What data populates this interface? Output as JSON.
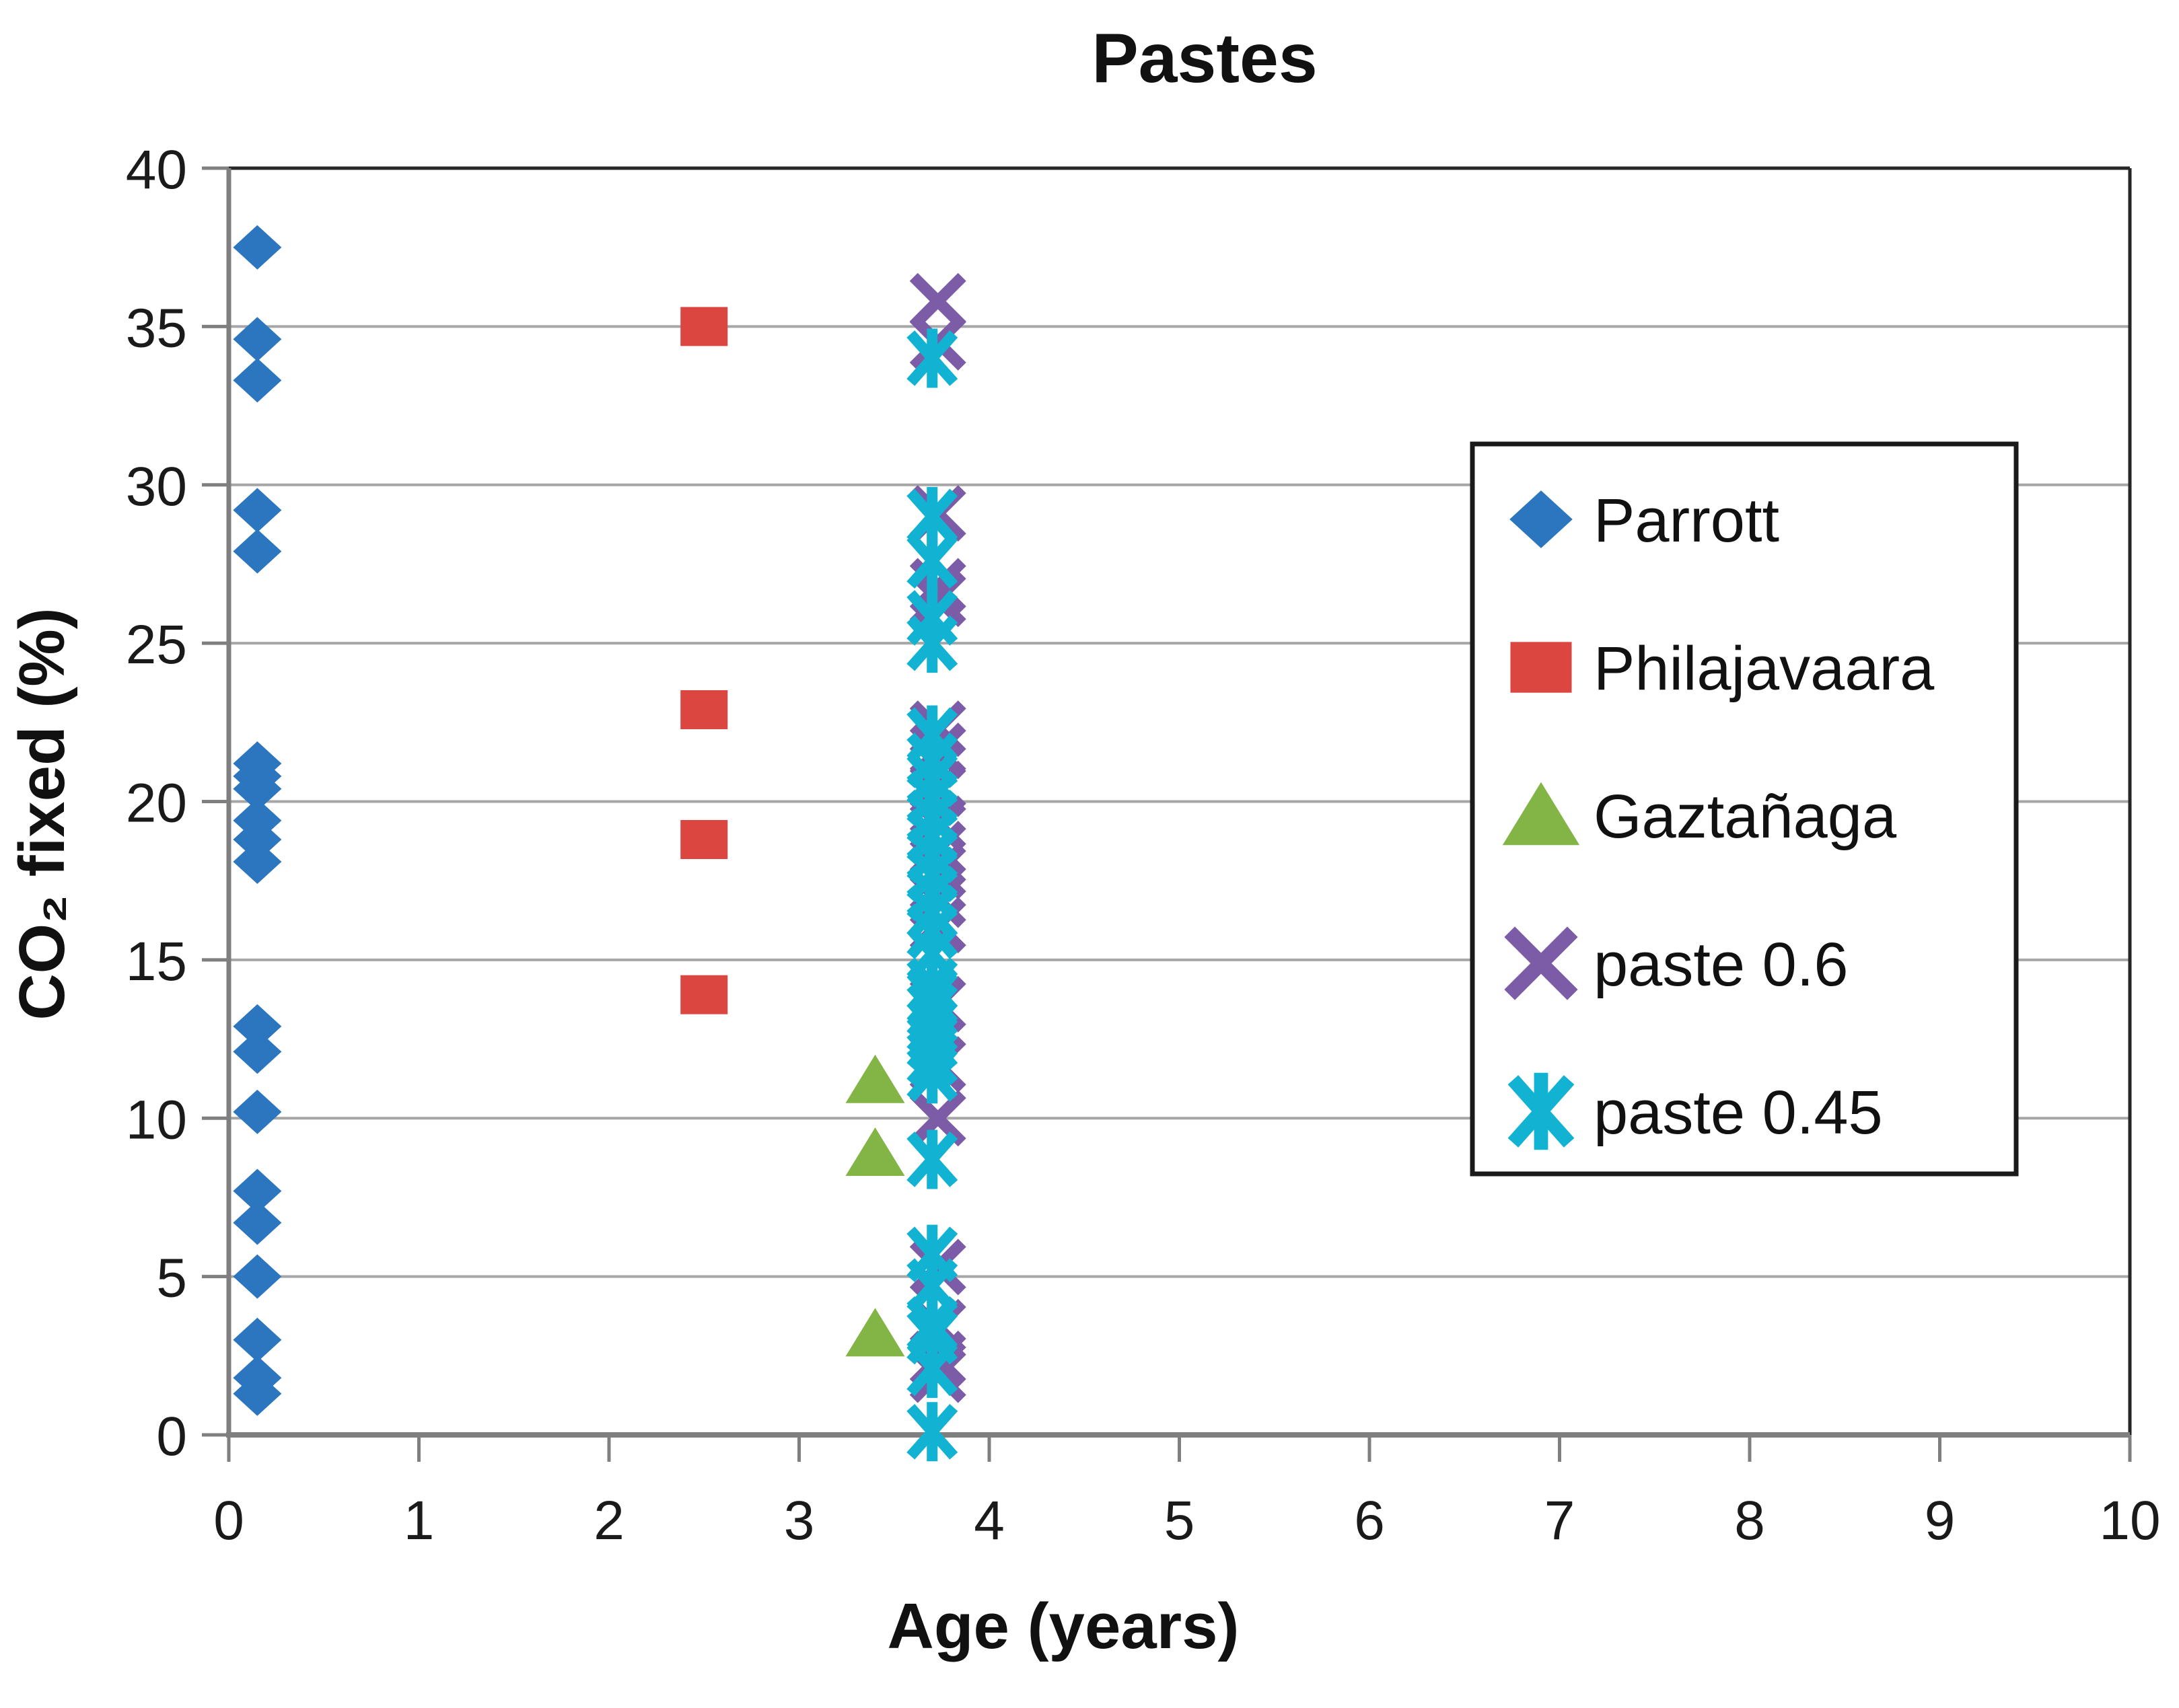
{
  "chart_data": {
    "type": "scatter",
    "title": "Pastes",
    "xlabel": "Age (years)",
    "ylabel": "CO₂ fixed (%)",
    "xlim": [
      0,
      10
    ],
    "ylim": [
      0,
      40
    ],
    "x_ticks": [
      0,
      1,
      2,
      3,
      4,
      5,
      6,
      7,
      8,
      9,
      10
    ],
    "y_ticks": [
      0,
      5,
      10,
      15,
      20,
      25,
      30,
      35,
      40
    ],
    "grid": "horizontal",
    "grid_color": "#A6A6A6",
    "axis_color": "#7F7F7F",
    "box_color": "#262626",
    "legend_position": "inside-right",
    "series": [
      {
        "name": "Parrott",
        "marker": "diamond",
        "color": "#2B76BE",
        "points": [
          [
            0.15,
            37.5
          ],
          [
            0.15,
            34.6
          ],
          [
            0.15,
            33.3
          ],
          [
            0.15,
            29.2
          ],
          [
            0.15,
            27.9
          ],
          [
            0.15,
            21.2
          ],
          [
            0.15,
            20.8
          ],
          [
            0.15,
            20.4
          ],
          [
            0.15,
            19.4
          ],
          [
            0.15,
            18.8
          ],
          [
            0.15,
            18.1
          ],
          [
            0.15,
            12.9
          ],
          [
            0.15,
            12.1
          ],
          [
            0.15,
            10.2
          ],
          [
            0.15,
            7.7
          ],
          [
            0.15,
            6.7
          ],
          [
            0.15,
            5.0
          ],
          [
            0.15,
            3.0
          ],
          [
            0.15,
            1.8
          ],
          [
            0.15,
            1.3
          ]
        ]
      },
      {
        "name": "Philajavaara",
        "marker": "square",
        "color": "#DB4640",
        "points": [
          [
            2.5,
            35.0
          ],
          [
            2.5,
            22.9
          ],
          [
            2.5,
            18.8
          ],
          [
            2.5,
            13.9
          ]
        ]
      },
      {
        "name": "Gaztañaga",
        "marker": "triangle",
        "color": "#82B446",
        "points": [
          [
            3.4,
            11.2
          ],
          [
            3.4,
            8.9
          ],
          [
            3.4,
            3.2
          ]
        ]
      },
      {
        "name": "paste 0.6",
        "marker": "x",
        "color": "#7C5CA6",
        "points": [
          [
            3.73,
            35.8
          ],
          [
            3.73,
            34.5
          ],
          [
            3.73,
            29.1
          ],
          [
            3.73,
            26.8
          ],
          [
            3.73,
            26.4
          ],
          [
            3.73,
            22.3
          ],
          [
            3.73,
            21.6
          ],
          [
            3.73,
            20.4
          ],
          [
            3.73,
            19.3
          ],
          [
            3.73,
            18.5
          ],
          [
            3.73,
            17.8
          ],
          [
            3.73,
            16.9
          ],
          [
            3.73,
            16.1
          ],
          [
            3.73,
            13.6
          ],
          [
            3.73,
            11.7
          ],
          [
            3.73,
            10.0
          ],
          [
            3.73,
            5.3
          ],
          [
            3.73,
            3.4
          ],
          [
            3.73,
            2.4
          ],
          [
            3.73,
            1.9
          ]
        ]
      },
      {
        "name": "paste 0.45",
        "marker": "star6",
        "color": "#12B2D2",
        "points": [
          [
            3.7,
            34.0
          ],
          [
            3.7,
            29.0
          ],
          [
            3.7,
            27.6
          ],
          [
            3.7,
            25.8
          ],
          [
            3.7,
            25.0
          ],
          [
            3.7,
            22.1
          ],
          [
            3.7,
            21.3
          ],
          [
            3.7,
            20.7
          ],
          [
            3.7,
            20.1
          ],
          [
            3.7,
            19.5
          ],
          [
            3.7,
            18.9
          ],
          [
            3.7,
            18.3
          ],
          [
            3.7,
            17.7
          ],
          [
            3.7,
            17.1
          ],
          [
            3.7,
            16.5
          ],
          [
            3.7,
            15.9
          ],
          [
            3.7,
            15.2
          ],
          [
            3.7,
            14.2
          ],
          [
            3.7,
            13.8
          ],
          [
            3.7,
            13.4
          ],
          [
            3.7,
            12.9
          ],
          [
            3.7,
            12.4
          ],
          [
            3.7,
            11.9
          ],
          [
            3.7,
            11.4
          ],
          [
            3.7,
            8.7
          ],
          [
            3.7,
            5.7
          ],
          [
            3.7,
            4.7
          ],
          [
            3.7,
            3.5
          ],
          [
            3.7,
            3.1
          ],
          [
            3.7,
            2.1
          ],
          [
            3.7,
            0.1
          ]
        ]
      }
    ]
  }
}
